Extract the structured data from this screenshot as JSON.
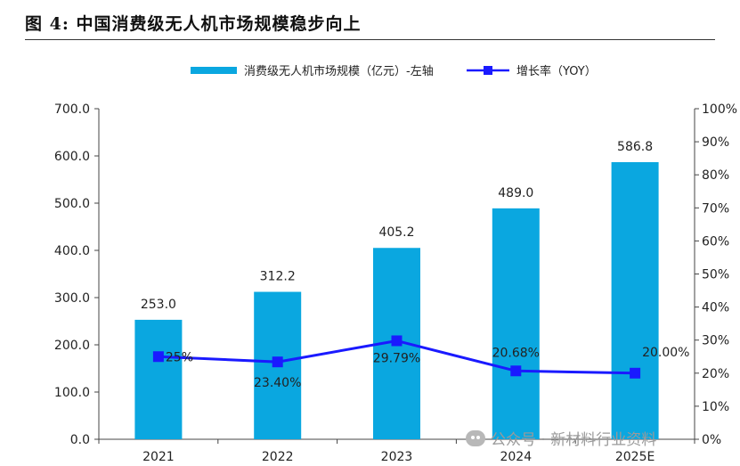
{
  "figure": {
    "title": "图 4:  中国消费级无人机市场规模稳步向上"
  },
  "watermark": {
    "text": "公众号 · 新材料行业资料"
  },
  "chart_data": {
    "type": "bar+line",
    "title": "中国消费级无人机市场规模稳步向上",
    "categories": [
      "2021",
      "2022",
      "2023",
      "2024",
      "2025E"
    ],
    "series": [
      {
        "name": "消费级无人机市场规模（亿元）-左轴",
        "type": "bar",
        "axis": "left",
        "color": "#0aa7e0",
        "values": [
          253.0,
          312.2,
          405.2,
          489.0,
          586.8
        ],
        "labels": [
          "253.0",
          "312.2",
          "405.2",
          "489.0",
          "586.8"
        ]
      },
      {
        "name": "增长率（YOY）",
        "type": "line",
        "axis": "right",
        "color": "#1a1aff",
        "values": [
          25.0,
          23.4,
          29.79,
          20.68,
          20.0
        ],
        "labels": [
          "25%",
          "23.40%",
          "29.79%",
          "20.68%",
          "20.00%"
        ]
      }
    ],
    "left_axis": {
      "ylim": [
        0,
        700
      ],
      "ticks": [
        "0.0",
        "100.0",
        "200.0",
        "300.0",
        "400.0",
        "500.0",
        "600.0",
        "700.0"
      ]
    },
    "right_axis": {
      "ylim": [
        0,
        100
      ],
      "ticks": [
        "0%",
        "10%",
        "20%",
        "30%",
        "40%",
        "50%",
        "60%",
        "70%",
        "80%",
        "90%",
        "100%"
      ]
    },
    "legend_position": "top-center"
  }
}
